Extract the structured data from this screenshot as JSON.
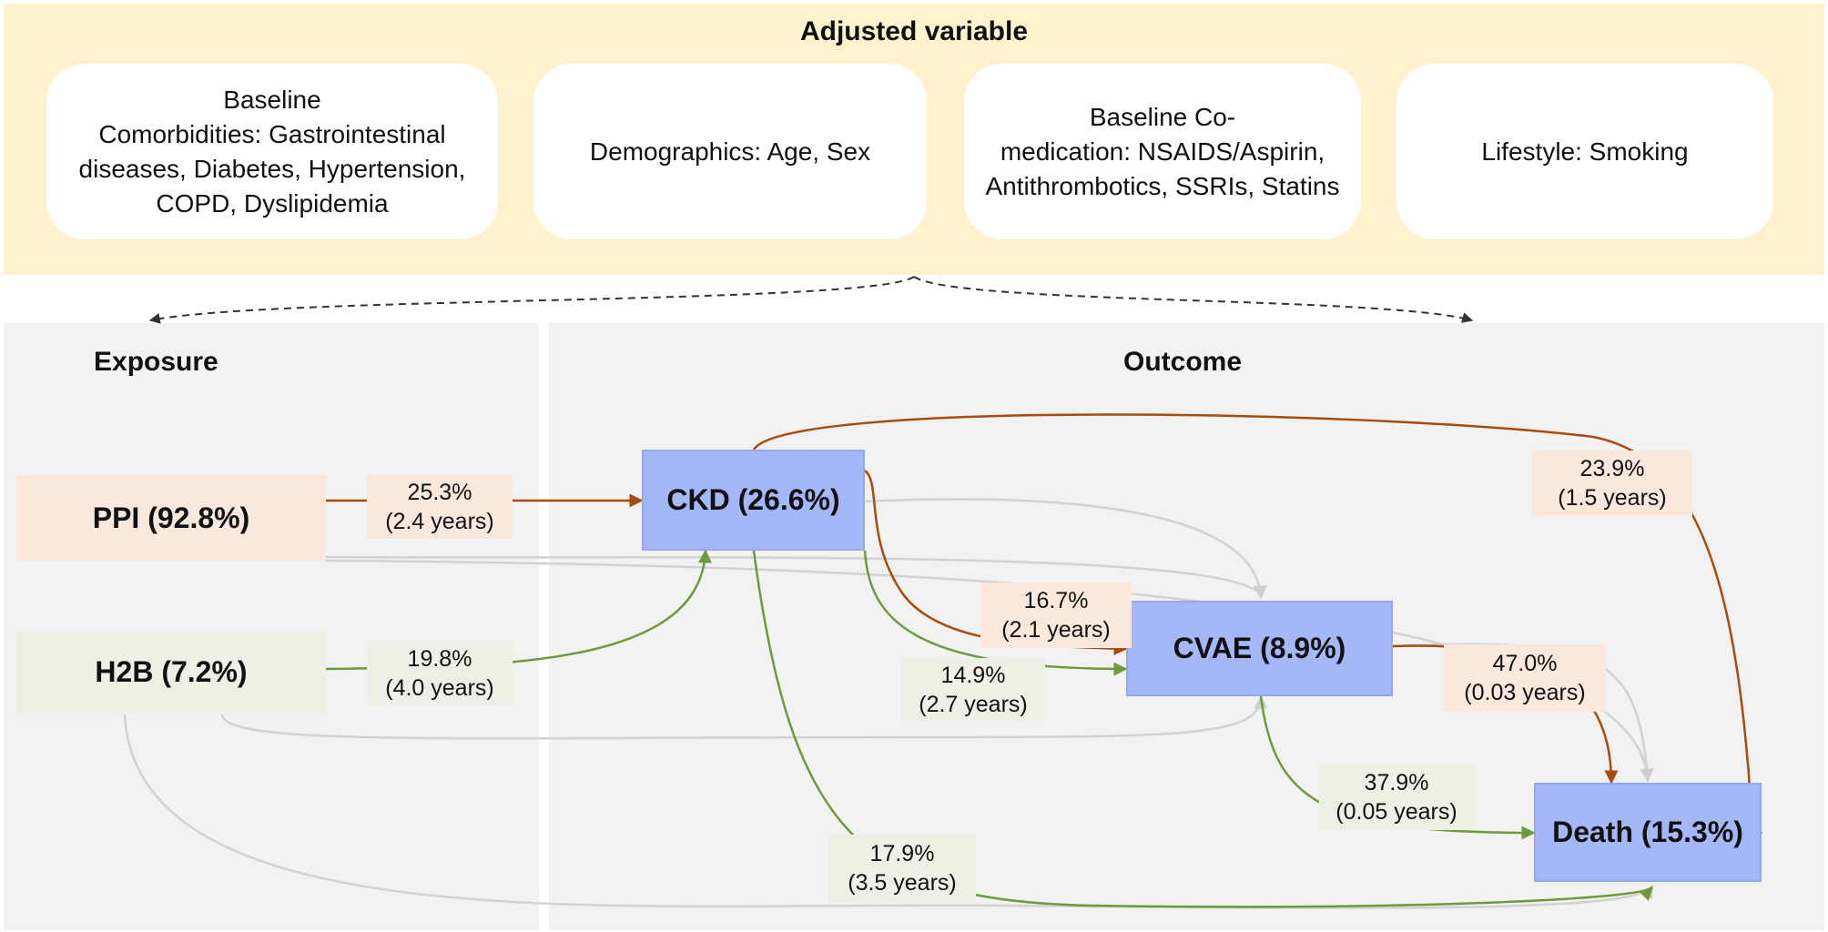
{
  "adjusted": {
    "title": "Adjusted variable",
    "cards": [
      {
        "lines": [
          "Baseline",
          "Comorbidities: Gastrointestinal",
          "diseases, Diabetes, Hypertension,",
          "COPD, Dyslipidemia"
        ]
      },
      {
        "lines": [
          "Demographics: Age, Sex"
        ]
      },
      {
        "lines": [
          "Baseline Co-",
          "medication: NSAIDS/Aspirin,",
          "Antithrombotics, SSRIs, Statins"
        ]
      },
      {
        "lines": [
          "Lifestyle: Smoking"
        ]
      }
    ]
  },
  "exposure": {
    "title": "Exposure",
    "ppi": "PPI (92.8%)",
    "h2b": "H2B (7.2%)"
  },
  "outcome": {
    "title": "Outcome",
    "ckd": "CKD (26.6%)",
    "cvae": "CVAE (8.9%)",
    "death": "Death (15.3%)"
  },
  "edges": {
    "ppi_ckd": {
      "pct": "25.3%",
      "time": "(2.4 years)"
    },
    "h2b_ckd": {
      "pct": "19.8%",
      "time": "(4.0 years)"
    },
    "ckd_death": {
      "pct": "23.9%",
      "time": "(1.5 years)"
    },
    "ckd_cvae_ppi": {
      "pct": "16.7%",
      "time": "(2.1 years)"
    },
    "ckd_cvae_h2b": {
      "pct": "14.9%",
      "time": "(2.7 years)"
    },
    "cvae_death_ppi": {
      "pct": "47.0%",
      "time": "(0.03 years)"
    },
    "cvae_death_h2b": {
      "pct": "37.9%",
      "time": "(0.05 years)"
    },
    "ckd_death_h2b": {
      "pct": "17.9%",
      "time": "(3.5 years)"
    }
  },
  "colors": {
    "ppi": "#a84b0c",
    "h2b": "#6f9a3c",
    "neutral": "#d0d0d0",
    "dashed": "#333333"
  }
}
